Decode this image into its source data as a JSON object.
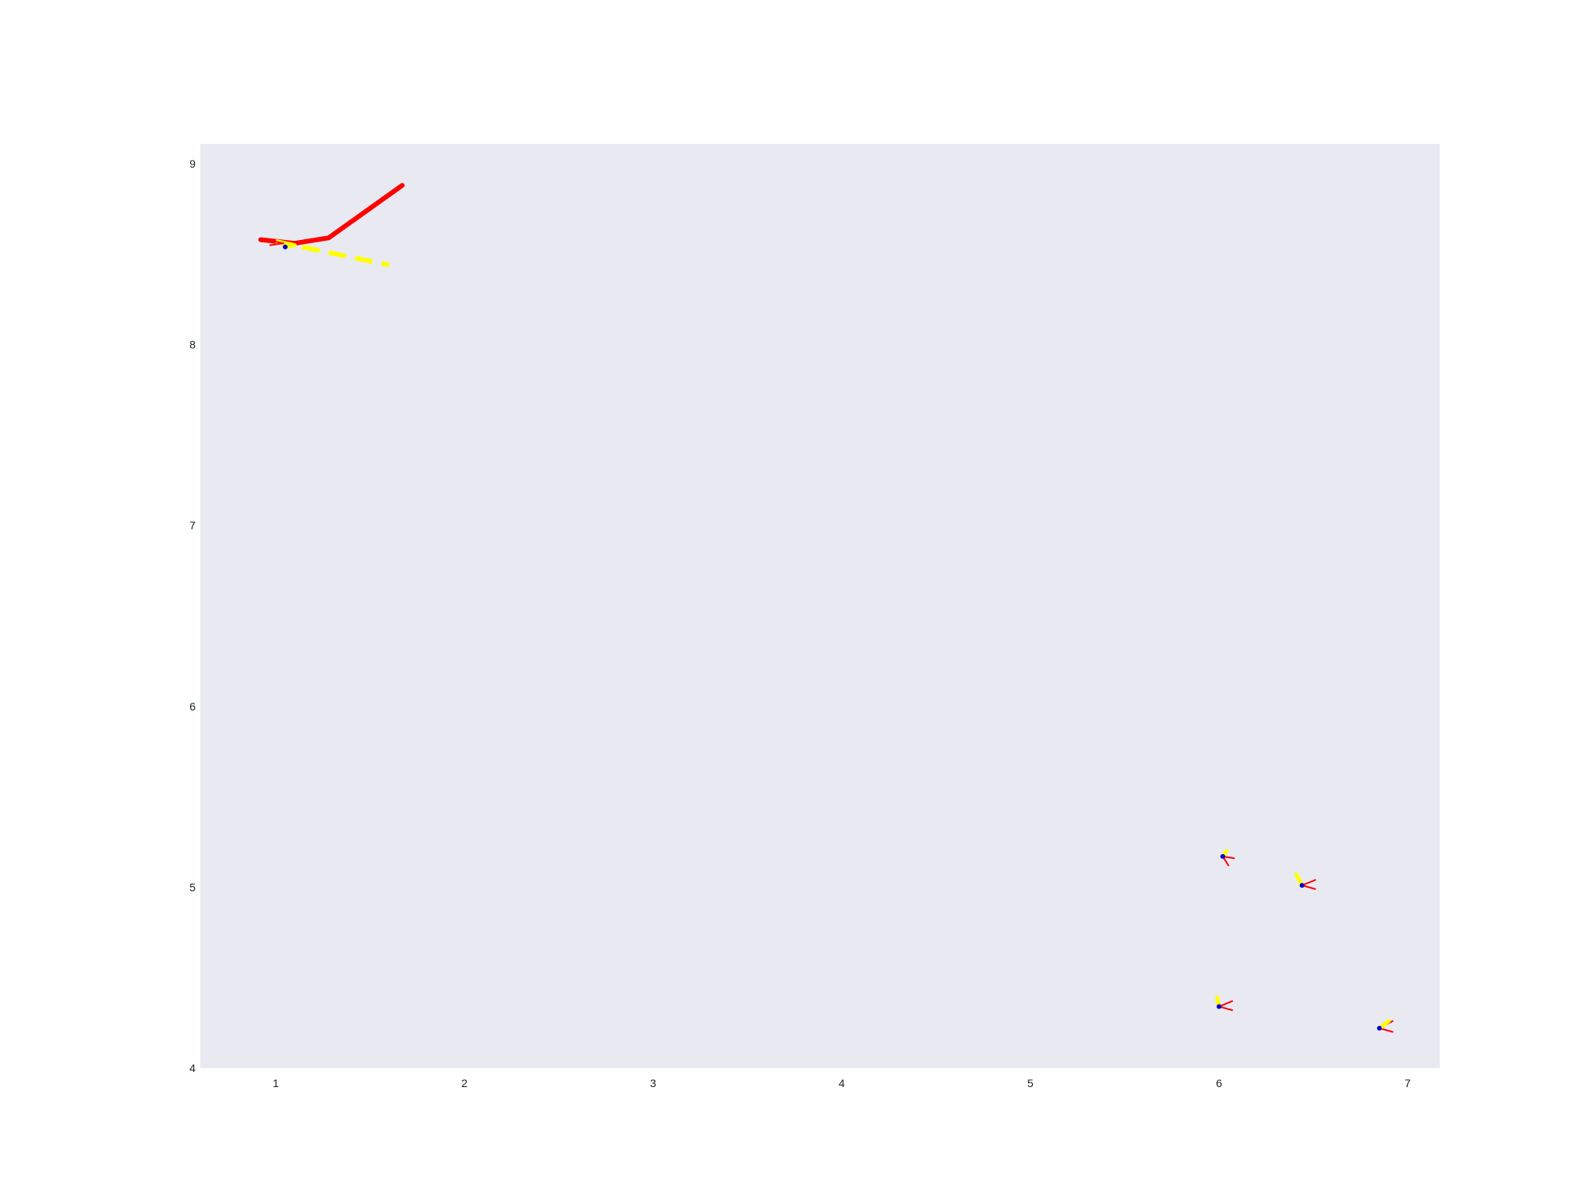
{
  "chart_data": {
    "type": "line",
    "title": "",
    "xlabel": "",
    "ylabel": "",
    "xlim": [
      0.6,
      7.17
    ],
    "ylim": [
      4.0,
      9.11
    ],
    "grid": false,
    "legend": "none",
    "plot_background": "#e9e9f2",
    "x_ticks": [
      1,
      2,
      3,
      4,
      5,
      6,
      7
    ],
    "y_ticks": [
      4,
      5,
      6,
      7,
      8,
      9
    ],
    "series": [
      {
        "color": "#ff0000",
        "style": "solid",
        "width": "thick",
        "points": [
          [
            0.92,
            8.58
          ],
          [
            1.1,
            8.56
          ],
          [
            1.28,
            8.59
          ],
          [
            1.67,
            8.88
          ]
        ]
      },
      {
        "color": "#ffff00",
        "style": "dashed",
        "width": "thick",
        "points": [
          [
            1.0,
            8.57
          ],
          [
            1.6,
            8.44
          ]
        ]
      }
    ],
    "markers": [
      {
        "x": 1.05,
        "y": 8.54,
        "color": "#0000cc",
        "segments": [
          {
            "color": "#ff0000",
            "points": [
              [
                0.95,
                8.58
              ],
              [
                1.04,
                8.56
              ]
            ]
          },
          {
            "color": "#ff0000",
            "points": [
              [
                0.97,
                8.55
              ],
              [
                1.04,
                8.56
              ]
            ]
          },
          {
            "color": "#ffff00",
            "points": [
              [
                1.05,
                8.54
              ],
              [
                1.1,
                8.55
              ]
            ]
          }
        ]
      },
      {
        "x": 6.02,
        "y": 5.17,
        "color": "#0000cc",
        "segments": [
          {
            "color": "#ff0000",
            "points": [
              [
                6.02,
                5.17
              ],
              [
                6.08,
                5.16
              ]
            ]
          },
          {
            "color": "#ff0000",
            "points": [
              [
                6.02,
                5.17
              ],
              [
                6.05,
                5.12
              ]
            ]
          },
          {
            "color": "#ffff00",
            "points": [
              [
                6.02,
                5.17
              ],
              [
                6.04,
                5.2
              ]
            ]
          }
        ]
      },
      {
        "x": 6.44,
        "y": 5.01,
        "color": "#0000cc",
        "segments": [
          {
            "color": "#ff0000",
            "points": [
              [
                6.44,
                5.01
              ],
              [
                6.51,
                5.04
              ]
            ]
          },
          {
            "color": "#ff0000",
            "points": [
              [
                6.44,
                5.01
              ],
              [
                6.51,
                4.99
              ]
            ]
          },
          {
            "color": "#ffff00",
            "points": [
              [
                6.44,
                5.01
              ],
              [
                6.41,
                5.07
              ]
            ]
          }
        ]
      },
      {
        "x": 6.0,
        "y": 4.34,
        "color": "#0000cc",
        "segments": [
          {
            "color": "#ff0000",
            "points": [
              [
                6.0,
                4.34
              ],
              [
                6.07,
                4.37
              ]
            ]
          },
          {
            "color": "#ff0000",
            "points": [
              [
                6.0,
                4.34
              ],
              [
                6.07,
                4.32
              ]
            ]
          },
          {
            "color": "#ffff00",
            "points": [
              [
                6.0,
                4.34
              ],
              [
                5.99,
                4.39
              ]
            ]
          }
        ]
      },
      {
        "x": 6.85,
        "y": 4.22,
        "color": "#0000cc",
        "segments": [
          {
            "color": "#ff0000",
            "points": [
              [
                6.85,
                4.22
              ],
              [
                6.92,
                4.26
              ]
            ]
          },
          {
            "color": "#ff0000",
            "points": [
              [
                6.85,
                4.22
              ],
              [
                6.92,
                4.2
              ]
            ]
          },
          {
            "color": "#ffff00",
            "points": [
              [
                6.85,
                4.22
              ],
              [
                6.9,
                4.26
              ]
            ]
          }
        ]
      }
    ]
  }
}
